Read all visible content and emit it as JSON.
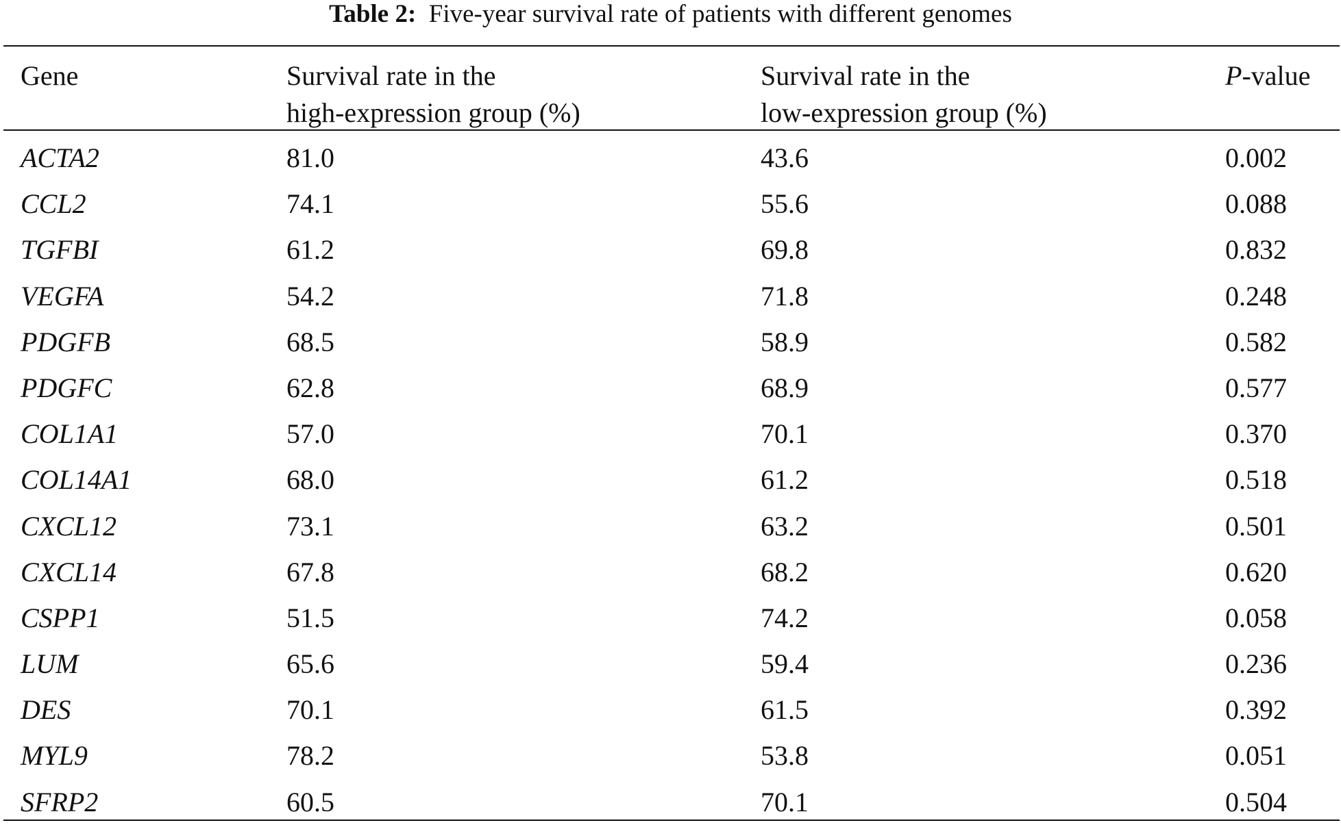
{
  "caption": {
    "label": "Table 2:",
    "text": "Five-year survival rate of patients with different genomes"
  },
  "header": {
    "gene": "Gene",
    "high_line1": "Survival rate in the",
    "high_line2": "high-expression group (%)",
    "low_line1": "Survival rate in the",
    "low_line2": "low-expression group (%)",
    "p_italic": "P",
    "p_rest": "-value"
  },
  "rows": [
    {
      "gene": "ACTA2",
      "high": "81.0",
      "low": "43.6",
      "p": "0.002"
    },
    {
      "gene": "CCL2",
      "high": "74.1",
      "low": "55.6",
      "p": "0.088"
    },
    {
      "gene": "TGFBI",
      "high": "61.2",
      "low": "69.8",
      "p": "0.832"
    },
    {
      "gene": "VEGFA",
      "high": "54.2",
      "low": "71.8",
      "p": "0.248"
    },
    {
      "gene": "PDGFB",
      "high": "68.5",
      "low": "58.9",
      "p": "0.582"
    },
    {
      "gene": "PDGFC",
      "high": "62.8",
      "low": "68.9",
      "p": "0.577"
    },
    {
      "gene": "COL1A1",
      "high": "57.0",
      "low": "70.1",
      "p": "0.370"
    },
    {
      "gene": "COL14A1",
      "high": "68.0",
      "low": "61.2",
      "p": "0.518"
    },
    {
      "gene": "CXCL12",
      "high": "73.1",
      "low": "63.2",
      "p": "0.501"
    },
    {
      "gene": "CXCL14",
      "high": "67.8",
      "low": "68.2",
      "p": "0.620"
    },
    {
      "gene": "CSPP1",
      "high": "51.5",
      "low": "74.2",
      "p": "0.058"
    },
    {
      "gene": "LUM",
      "high": "65.6",
      "low": "59.4",
      "p": "0.236"
    },
    {
      "gene": "DES",
      "high": "70.1",
      "low": "61.5",
      "p": "0.392"
    },
    {
      "gene": "MYL9",
      "high": "78.2",
      "low": "53.8",
      "p": "0.051"
    },
    {
      "gene": "SFRP2",
      "high": "60.5",
      "low": "70.1",
      "p": "0.504"
    }
  ]
}
